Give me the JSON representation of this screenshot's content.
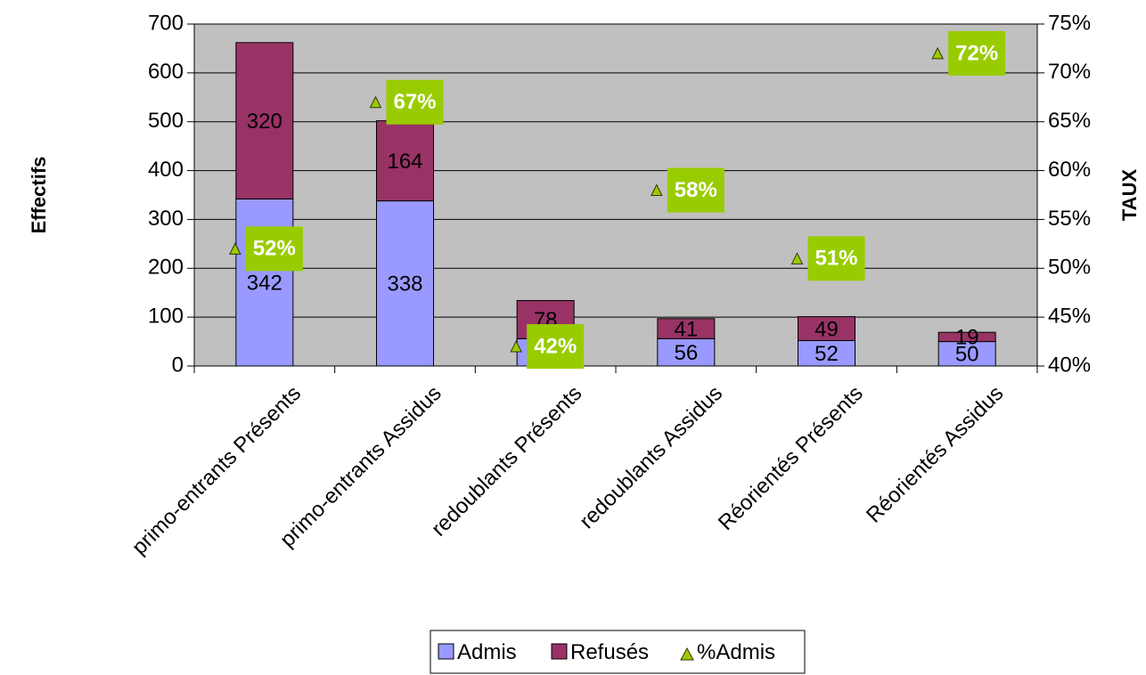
{
  "chart_data": {
    "type": "bar",
    "stacked": true,
    "categories": [
      "primo-entrants Présents",
      "primo-entrants Assidus",
      "redoublants Présents",
      "redoublants Assidus",
      "Réorientés Présents",
      "Réorientés Assidus"
    ],
    "series": [
      {
        "name": "Admis",
        "axis": "left",
        "kind": "bar",
        "color": "#9999ff",
        "values": [
          342,
          338,
          56,
          56,
          52,
          50
        ],
        "labels": [
          "342",
          "338",
          "56",
          "56",
          "52",
          "50"
        ]
      },
      {
        "name": "Refusés",
        "axis": "left",
        "kind": "bar",
        "color": "#993366",
        "values": [
          320,
          164,
          78,
          41,
          49,
          19
        ],
        "labels": [
          "320",
          "164",
          "78",
          "41",
          "49",
          "19"
        ]
      },
      {
        "name": "%Admis",
        "axis": "right",
        "kind": "marker",
        "marker": "triangle",
        "color": "#99cc00",
        "values": [
          0.52,
          0.67,
          0.42,
          0.58,
          0.51,
          0.72
        ],
        "labels": [
          "52%",
          "67%",
          "42%",
          "58%",
          "51%",
          "72%"
        ]
      }
    ],
    "ylabel": "Effectifs",
    "y2label": "TAUX",
    "ylim": [
      0,
      700
    ],
    "y2lim": [
      0.4,
      0.75
    ],
    "yticks": [
      "0",
      "100",
      "200",
      "300",
      "400",
      "500",
      "600",
      "700"
    ],
    "y2ticks": [
      "40%",
      "45%",
      "50%",
      "55%",
      "60%",
      "65%",
      "70%",
      "75%"
    ],
    "plot_background": "#c0c0c0",
    "grid": true,
    "legend_position": "bottom",
    "label_box_color": "#99cc00"
  }
}
